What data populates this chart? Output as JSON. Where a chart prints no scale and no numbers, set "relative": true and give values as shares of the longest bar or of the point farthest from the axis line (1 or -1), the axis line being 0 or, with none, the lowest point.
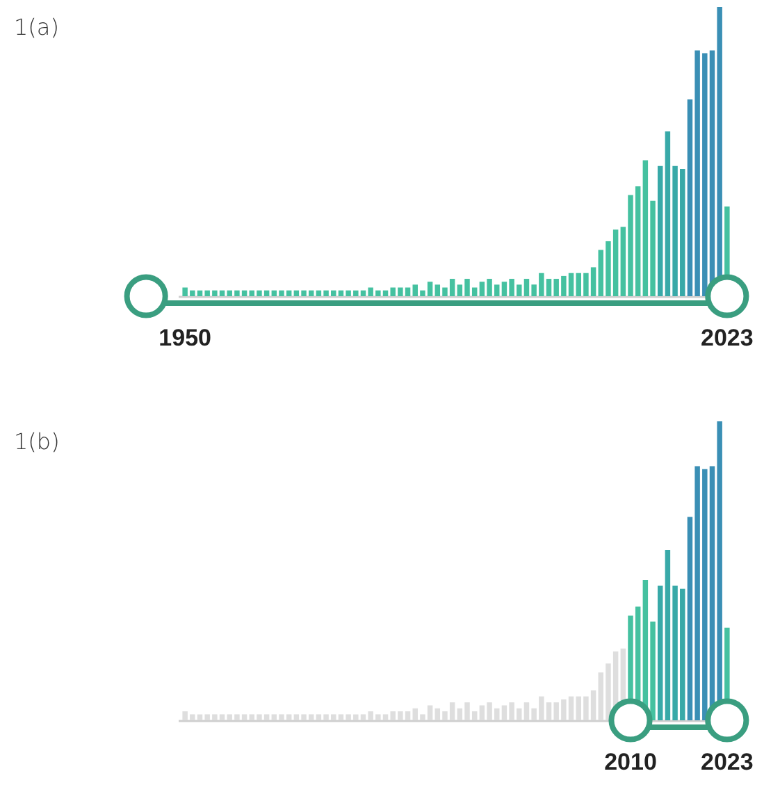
{
  "chart_data": [
    {
      "type": "bar",
      "title": "1(a)",
      "relative": true,
      "categories": [
        "1950",
        null,
        null,
        null,
        null,
        null,
        null,
        null,
        null,
        null,
        null,
        null,
        null,
        null,
        null,
        null,
        null,
        null,
        null,
        null,
        null,
        null,
        null,
        null,
        null,
        null,
        null,
        null,
        null,
        null,
        null,
        null,
        null,
        null,
        null,
        null,
        null,
        null,
        null,
        null,
        null,
        null,
        null,
        null,
        null,
        null,
        null,
        null,
        null,
        null,
        null,
        null,
        null,
        null,
        null,
        null,
        null,
        null,
        null,
        null,
        null,
        null,
        null,
        null,
        null,
        null,
        null,
        null,
        null,
        null,
        null,
        null,
        null,
        "2023"
      ],
      "values": [
        0.03,
        0.02,
        0.02,
        0.02,
        0.02,
        0.02,
        0.02,
        0.02,
        0.02,
        0.02,
        0.02,
        0.02,
        0.02,
        0.02,
        0.02,
        0.02,
        0.02,
        0.02,
        0.02,
        0.02,
        0.02,
        0.02,
        0.02,
        0.02,
        0.02,
        0.03,
        0.02,
        0.02,
        0.03,
        0.03,
        0.03,
        0.04,
        0.02,
        0.05,
        0.04,
        0.03,
        0.06,
        0.04,
        0.06,
        0.03,
        0.05,
        0.06,
        0.04,
        0.05,
        0.06,
        0.04,
        0.06,
        0.04,
        0.08,
        0.06,
        0.06,
        0.07,
        0.08,
        0.08,
        0.08,
        0.1,
        0.16,
        0.19,
        0.23,
        0.24,
        0.35,
        0.38,
        0.47,
        0.33,
        0.45,
        0.57,
        0.45,
        0.44,
        0.68,
        0.85,
        0.84,
        0.85,
        1,
        0.31
      ],
      "colors": [
        "#45c1a0",
        "#45c1a0",
        "#45c1a0",
        "#45c1a0",
        "#45c1a0",
        "#45c1a0",
        "#45c1a0",
        "#45c1a0",
        "#45c1a0",
        "#45c1a0",
        "#45c1a0",
        "#45c1a0",
        "#45c1a0",
        "#45c1a0",
        "#45c1a0",
        "#45c1a0",
        "#45c1a0",
        "#45c1a0",
        "#45c1a0",
        "#45c1a0",
        "#45c1a0",
        "#45c1a0",
        "#45c1a0",
        "#45c1a0",
        "#45c1a0",
        "#45c1a0",
        "#45c1a0",
        "#45c1a0",
        "#45c1a0",
        "#45c1a0",
        "#45c1a0",
        "#45c1a0",
        "#45c1a0",
        "#45c1a0",
        "#45c1a0",
        "#45c1a0",
        "#45c1a0",
        "#45c1a0",
        "#45c1a0",
        "#45c1a0",
        "#45c1a0",
        "#45c1a0",
        "#45c1a0",
        "#45c1a0",
        "#45c1a0",
        "#45c1a0",
        "#45c1a0",
        "#45c1a0",
        "#45c1a0",
        "#45c1a0",
        "#45c1a0",
        "#45c1a0",
        "#45c1a0",
        "#45c1a0",
        "#45c1a0",
        "#45c1a0",
        "#45c1a0",
        "#45c1a0",
        "#45c1a0",
        "#45c1a0",
        "#45c1a0",
        "#45c1a0",
        "#45c1a0",
        "#45c1a0",
        "#38a9a8",
        "#38a9a8",
        "#38a9a8",
        "#38a9a8",
        "#3a8fb5",
        "#3a8fb5",
        "#3a8fb5",
        "#3a8fb5",
        "#3a8fb5",
        "#45c1a0"
      ]
    },
    {
      "type": "bar",
      "title": "1(b)",
      "relative": true,
      "categories": [
        null,
        null,
        null,
        null,
        null,
        null,
        null,
        null,
        null,
        null,
        null,
        null,
        null,
        null,
        null,
        null,
        null,
        null,
        null,
        null,
        null,
        null,
        null,
        null,
        null,
        null,
        null,
        null,
        null,
        null,
        null,
        null,
        null,
        null,
        null,
        null,
        null,
        null,
        null,
        null,
        null,
        null,
        null,
        null,
        null,
        null,
        null,
        null,
        null,
        null,
        null,
        null,
        null,
        null,
        null,
        null,
        null,
        null,
        null,
        null,
        "2010",
        null,
        null,
        null,
        null,
        null,
        null,
        null,
        null,
        null,
        null,
        null,
        null,
        "2023"
      ],
      "values": [
        0.03,
        0.02,
        0.02,
        0.02,
        0.02,
        0.02,
        0.02,
        0.02,
        0.02,
        0.02,
        0.02,
        0.02,
        0.02,
        0.02,
        0.02,
        0.02,
        0.02,
        0.02,
        0.02,
        0.02,
        0.02,
        0.02,
        0.02,
        0.02,
        0.02,
        0.03,
        0.02,
        0.02,
        0.03,
        0.03,
        0.03,
        0.04,
        0.02,
        0.05,
        0.04,
        0.03,
        0.06,
        0.04,
        0.06,
        0.03,
        0.05,
        0.06,
        0.04,
        0.05,
        0.06,
        0.04,
        0.06,
        0.04,
        0.08,
        0.06,
        0.06,
        0.07,
        0.08,
        0.08,
        0.08,
        0.1,
        0.16,
        0.19,
        0.23,
        0.24,
        0.35,
        0.38,
        0.47,
        0.33,
        0.45,
        0.57,
        0.45,
        0.44,
        0.68,
        0.85,
        0.84,
        0.85,
        1,
        0.31
      ],
      "colors": [
        "#dedede",
        "#dedede",
        "#dedede",
        "#dedede",
        "#dedede",
        "#dedede",
        "#dedede",
        "#dedede",
        "#dedede",
        "#dedede",
        "#dedede",
        "#dedede",
        "#dedede",
        "#dedede",
        "#dedede",
        "#dedede",
        "#dedede",
        "#dedede",
        "#dedede",
        "#dedede",
        "#dedede",
        "#dedede",
        "#dedede",
        "#dedede",
        "#dedede",
        "#dedede",
        "#dedede",
        "#dedede",
        "#dedede",
        "#dedede",
        "#dedede",
        "#dedede",
        "#dedede",
        "#dedede",
        "#dedede",
        "#dedede",
        "#dedede",
        "#dedede",
        "#dedede",
        "#dedede",
        "#dedede",
        "#dedede",
        "#dedede",
        "#dedede",
        "#dedede",
        "#dedede",
        "#dedede",
        "#dedede",
        "#dedede",
        "#dedede",
        "#dedede",
        "#dedede",
        "#dedede",
        "#dedede",
        "#dedede",
        "#dedede",
        "#dedede",
        "#dedede",
        "#dedede",
        "#dedede",
        "#45c1a0",
        "#45c1a0",
        "#45c1a0",
        "#45c1a0",
        "#38a9a8",
        "#38a9a8",
        "#38a9a8",
        "#38a9a8",
        "#3a8fb5",
        "#3a8fb5",
        "#3a8fb5",
        "#3a8fb5",
        "#3a8fb5",
        "#45c1a0"
      ]
    }
  ]
}
